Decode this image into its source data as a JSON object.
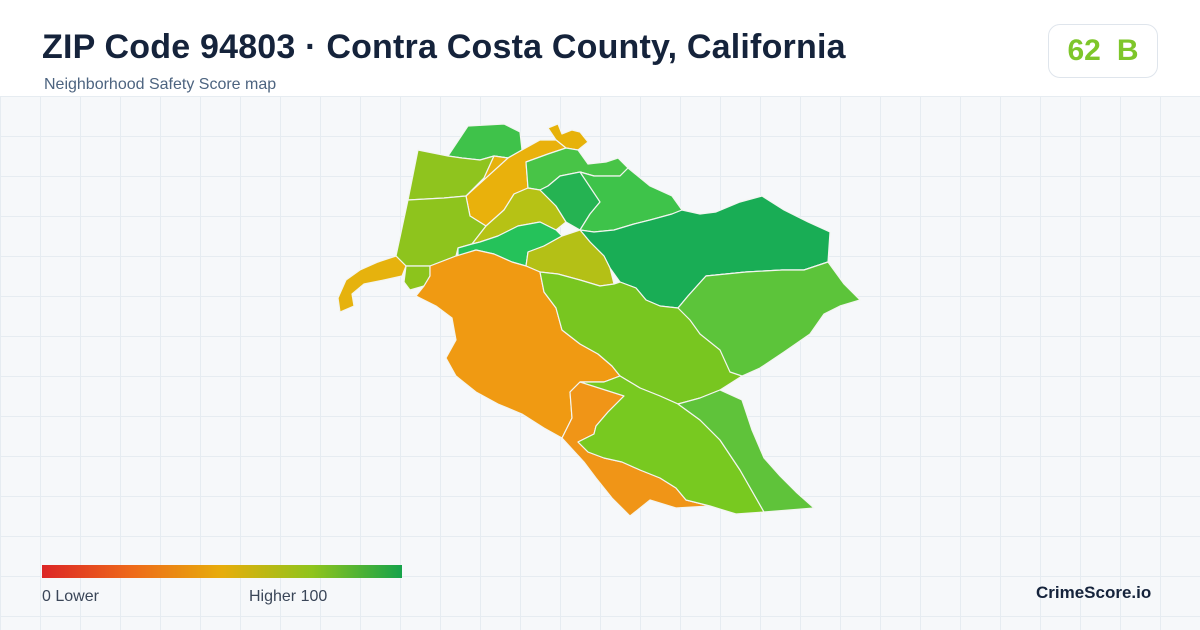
{
  "header": {
    "title": "ZIP Code 94803 · Contra Costa County, California",
    "subtitle": "Neighborhood Safety Score map"
  },
  "score": {
    "value": "62",
    "grade": "B",
    "color": "#7ec62a"
  },
  "map": {
    "neighborhoods": [
      {
        "name": "n-north-tip",
        "color": "#e7b209"
      },
      {
        "name": "n-north-top",
        "color": "#3fc24a"
      },
      {
        "name": "n-north-yellow",
        "color": "#e9b10c"
      },
      {
        "name": "n-north-right",
        "color": "#48c447"
      },
      {
        "name": "n-northwest",
        "color": "#8fc41e"
      },
      {
        "name": "n-west",
        "color": "#8ec41d"
      },
      {
        "name": "n-center-yellow",
        "color": "#e6b20e"
      },
      {
        "name": "n-olive",
        "color": "#b6c215"
      },
      {
        "name": "n-teal",
        "color": "#25c25a"
      },
      {
        "name": "n-green-band",
        "color": "#25b352"
      },
      {
        "name": "n-green-upper",
        "color": "#3ec34a"
      },
      {
        "name": "n-dark-green",
        "color": "#19ad55"
      },
      {
        "name": "n-olive-center",
        "color": "#b4c016"
      },
      {
        "name": "n-west-spit",
        "color": "#e6b20d"
      },
      {
        "name": "n-lime-small",
        "color": "#8cc41c"
      },
      {
        "name": "n-orange-big",
        "color": "#f09a12"
      },
      {
        "name": "n-lime-band",
        "color": "#78c620"
      },
      {
        "name": "n-green-mid",
        "color": "#5cc43a"
      },
      {
        "name": "n-orange-south",
        "color": "#f09517"
      },
      {
        "name": "n-lime-south",
        "color": "#78c920"
      },
      {
        "name": "n-southeast",
        "color": "#5fc33a"
      }
    ]
  },
  "legend": {
    "low_label": "0  Lower",
    "high_label": "Higher  100",
    "colors": [
      "#dc2626",
      "#ee6a1a",
      "#e7ad0b",
      "#8fc41c",
      "#16a34a"
    ]
  },
  "brand": "CrimeScore.io"
}
